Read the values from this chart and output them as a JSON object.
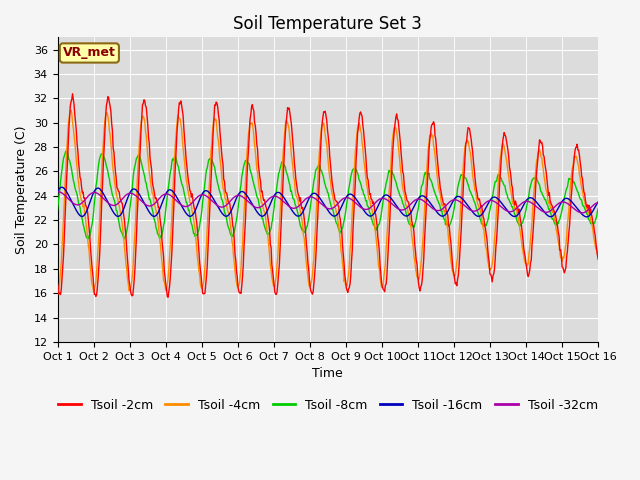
{
  "title": "Soil Temperature Set 3",
  "xlabel": "Time",
  "ylabel": "Soil Temperature (C)",
  "ylim": [
    12,
    37
  ],
  "yticks": [
    12,
    14,
    16,
    18,
    20,
    22,
    24,
    26,
    28,
    30,
    32,
    34,
    36
  ],
  "xtick_labels": [
    "Oct 1",
    "Oct 2",
    "Oct 3",
    "Oct 4",
    "Oct 5",
    "Oct 6",
    "Oct 7",
    "Oct 8",
    "Oct 9",
    "Oct 10",
    "Oct 11",
    "Oct 12",
    "Oct 13",
    "Oct 14",
    "Oct 15",
    "Oct 16"
  ],
  "bg_color": "#dcdcdc",
  "fig_bg_color": "#f5f5f5",
  "annotation_text": "VR_met",
  "annotation_bg": "#ffffaa",
  "annotation_border": "#8b6914",
  "legend_labels": [
    "Tsoil -2cm",
    "Tsoil -4cm",
    "Tsoil -8cm",
    "Tsoil -16cm",
    "Tsoil -32cm"
  ],
  "line_colors": [
    "#ff0000",
    "#ff8c00",
    "#00cc00",
    "#0000bb",
    "#aa00aa"
  ],
  "title_fontsize": 12,
  "axis_fontsize": 9,
  "tick_fontsize": 8,
  "legend_fontsize": 9
}
